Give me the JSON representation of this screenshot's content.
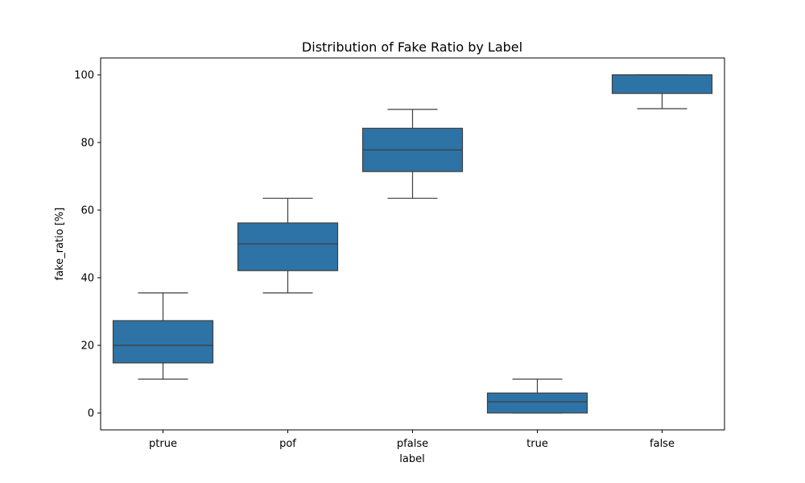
{
  "chart_data": {
    "type": "box",
    "title": "Distribution of Fake Ratio by Label",
    "xlabel": "label",
    "ylabel": "fake_ratio [%]",
    "ylim": [
      -5,
      105
    ],
    "yticks": [
      0,
      20,
      40,
      60,
      80,
      100
    ],
    "grid": false,
    "legend": "none",
    "color": "#2e73a6",
    "edge_color": "#3f3f3f",
    "categories": [
      "ptrue",
      "pof",
      "pfalse",
      "true",
      "false"
    ],
    "boxes": [
      {
        "label": "ptrue",
        "whisker_low": 10,
        "q1": 14.8,
        "median": 20,
        "q3": 27.3,
        "whisker_high": 35.5
      },
      {
        "label": "pof",
        "whisker_low": 35.5,
        "q1": 42.1,
        "median": 50,
        "q3": 56.2,
        "whisker_high": 63.5
      },
      {
        "label": "pfalse",
        "whisker_low": 63.5,
        "q1": 71.4,
        "median": 77.8,
        "q3": 84.2,
        "whisker_high": 89.8
      },
      {
        "label": "true",
        "whisker_low": 0,
        "q1": 0,
        "median": 3.3,
        "q3": 5.9,
        "whisker_high": 10
      },
      {
        "label": "false",
        "whisker_low": 90,
        "q1": 94.5,
        "median": 100,
        "q3": 100,
        "whisker_high": 100
      }
    ]
  }
}
